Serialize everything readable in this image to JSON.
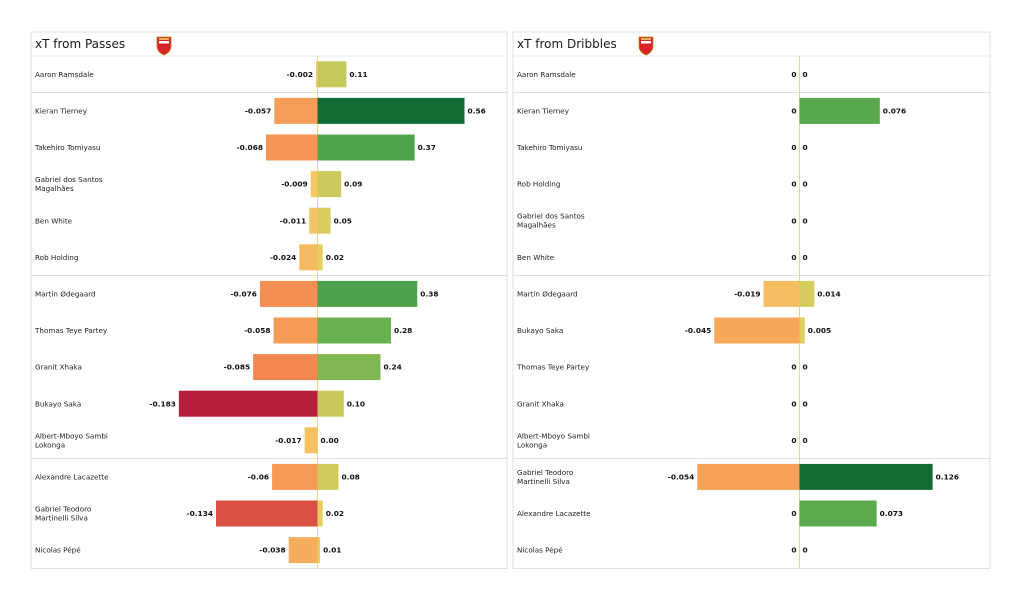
{
  "chart_data": [
    {
      "type": "bar",
      "orientation": "horizontal-diverging",
      "title": "xT from Passes",
      "logo": "arsenal-crest",
      "xlim": [
        -0.2,
        0.6
      ],
      "players": [
        {
          "name": [
            "Aaron Ramsdale"
          ],
          "neg": -0.002,
          "pos": 0.11,
          "neg_label": "-0.002",
          "pos_label": "0.11"
        },
        {
          "name": [
            "Kieran Tierney"
          ],
          "neg": -0.057,
          "pos": 0.56,
          "neg_label": "-0.057",
          "pos_label": "0.56"
        },
        {
          "name": [
            "Takehiro Tomiyasu"
          ],
          "neg": -0.068,
          "pos": 0.37,
          "neg_label": "-0.068",
          "pos_label": "0.37"
        },
        {
          "name": [
            "Gabriel dos Santos",
            "Magalhães"
          ],
          "neg": -0.009,
          "pos": 0.09,
          "neg_label": "-0.009",
          "pos_label": "0.09"
        },
        {
          "name": [
            "Ben White"
          ],
          "neg": -0.011,
          "pos": 0.05,
          "neg_label": "-0.011",
          "pos_label": "0.05"
        },
        {
          "name": [
            "Rob Holding"
          ],
          "neg": -0.024,
          "pos": 0.02,
          "neg_label": "-0.024",
          "pos_label": "0.02"
        },
        {
          "name": [
            "Martin Ødegaard"
          ],
          "neg": -0.076,
          "pos": 0.38,
          "neg_label": "-0.076",
          "pos_label": "0.38"
        },
        {
          "name": [
            "Thomas Teye Partey"
          ],
          "neg": -0.058,
          "pos": 0.28,
          "neg_label": "-0.058",
          "pos_label": "0.28"
        },
        {
          "name": [
            "Granit Xhaka"
          ],
          "neg": -0.085,
          "pos": 0.24,
          "neg_label": "-0.085",
          "pos_label": "0.24"
        },
        {
          "name": [
            "Bukayo Saka"
          ],
          "neg": -0.183,
          "pos": 0.1,
          "neg_label": "-0.183",
          "pos_label": "0.10"
        },
        {
          "name": [
            "Albert-Mboyo Sambi",
            "Lokonga"
          ],
          "neg": -0.017,
          "pos": 0.0,
          "neg_label": "-0.017",
          "pos_label": "0.00"
        },
        {
          "name": [
            "Alexandre Lacazette"
          ],
          "neg": -0.06,
          "pos": 0.08,
          "neg_label": "-0.06",
          "pos_label": "0.08"
        },
        {
          "name": [
            "Gabriel Teodoro",
            "Martinelli Silva"
          ],
          "neg": -0.134,
          "pos": 0.02,
          "neg_label": "-0.134",
          "pos_label": "0.02"
        },
        {
          "name": [
            "Nicolas Pépé"
          ],
          "neg": -0.038,
          "pos": 0.01,
          "neg_label": "-0.038",
          "pos_label": "0.01"
        }
      ],
      "group_dividers_after": [
        0,
        5,
        10
      ]
    },
    {
      "type": "bar",
      "orientation": "horizontal-diverging",
      "title": "xT from Dribbles",
      "logo": "arsenal-crest",
      "xlim": [
        -0.08,
        0.15
      ],
      "players": [
        {
          "name": [
            "Aaron Ramsdale"
          ],
          "neg": 0,
          "pos": 0,
          "neg_label": "0",
          "pos_label": "0"
        },
        {
          "name": [
            "Kieran Tierney"
          ],
          "neg": 0,
          "pos": 0.076,
          "neg_label": "0",
          "pos_label": "0.076"
        },
        {
          "name": [
            "Takehiro Tomiyasu"
          ],
          "neg": 0,
          "pos": 0,
          "neg_label": "0",
          "pos_label": "0"
        },
        {
          "name": [
            "Rob Holding"
          ],
          "neg": 0,
          "pos": 0,
          "neg_label": "0",
          "pos_label": "0"
        },
        {
          "name": [
            "Gabriel dos Santos",
            "Magalhães"
          ],
          "neg": 0,
          "pos": 0,
          "neg_label": "0",
          "pos_label": "0"
        },
        {
          "name": [
            "Ben White"
          ],
          "neg": 0,
          "pos": 0,
          "neg_label": "0",
          "pos_label": "0"
        },
        {
          "name": [
            "Martin Ødegaard"
          ],
          "neg": -0.019,
          "pos": 0.014,
          "neg_label": "-0.019",
          "pos_label": "0.014"
        },
        {
          "name": [
            "Bukayo Saka"
          ],
          "neg": -0.045,
          "pos": 0.005,
          "neg_label": "-0.045",
          "pos_label": "0.005"
        },
        {
          "name": [
            "Thomas Teye Partey"
          ],
          "neg": 0,
          "pos": 0,
          "neg_label": "0",
          "pos_label": "0"
        },
        {
          "name": [
            "Granit Xhaka"
          ],
          "neg": 0,
          "pos": 0,
          "neg_label": "0",
          "pos_label": "0"
        },
        {
          "name": [
            "Albert-Mboyo Sambi",
            "Lokonga"
          ],
          "neg": 0,
          "pos": 0,
          "neg_label": "0",
          "pos_label": "0"
        },
        {
          "name": [
            "Gabriel Teodoro",
            "Martinelli Silva"
          ],
          "neg": -0.054,
          "pos": 0.126,
          "neg_label": "-0.054",
          "pos_label": "0.126"
        },
        {
          "name": [
            "Alexandre Lacazette"
          ],
          "neg": 0,
          "pos": 0.073,
          "neg_label": "0",
          "pos_label": "0.073"
        },
        {
          "name": [
            "Nicolas Pépé"
          ],
          "neg": 0,
          "pos": 0,
          "neg_label": "0",
          "pos_label": "0"
        }
      ],
      "group_dividers_after": [
        0,
        5,
        10
      ]
    }
  ]
}
